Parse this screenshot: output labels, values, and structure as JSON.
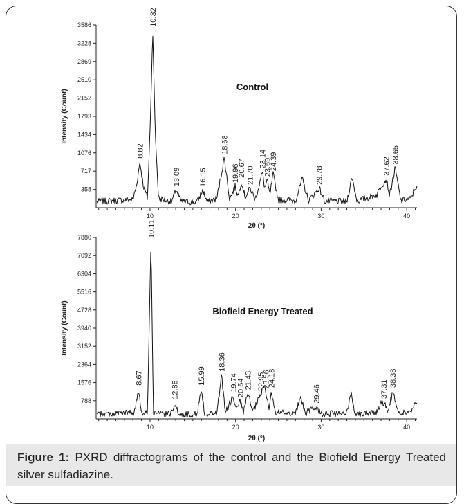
{
  "caption": {
    "label": "Figure 1:",
    "text": " PXRD diffractograms of the control and the Biofield Energy Treated silver sulfadiazine."
  },
  "chart_data": [
    {
      "type": "line",
      "title": "Control",
      "xlabel": "2θ (°)",
      "ylabel": "Intensity (Count)",
      "xlim": [
        3.7,
        41.2
      ],
      "ylim": [
        0,
        3586
      ],
      "x_ticks": [
        10,
        20,
        30,
        40
      ],
      "y_ticks": [
        358,
        717,
        1076,
        1434,
        1793,
        2152,
        2510,
        2869,
        3228,
        3586
      ],
      "series": [
        {
          "x": [
            4,
            8,
            8.4,
            8.82,
            9.2,
            9.7,
            10.0,
            10.32,
            10.6,
            11.0,
            12.5,
            13.09,
            13.6,
            15.5,
            16.15,
            16.7,
            17.8,
            18.68,
            19.3,
            19.96,
            20.3,
            20.67,
            21.1,
            21.7,
            22.3,
            23.14,
            23.4,
            23.69,
            24.0,
            24.39,
            25.0,
            27.0,
            27.8,
            28.5,
            29.78,
            30.4,
            33.0,
            33.6,
            34.2,
            36.5,
            37.0,
            37.62,
            38.0,
            38.65,
            39.3,
            40.5,
            41.0
          ],
          "y": [
            120,
            160,
            420,
            900,
            450,
            180,
            1500,
            3480,
            1500,
            180,
            120,
            350,
            120,
            110,
            340,
            110,
            180,
            980,
            170,
            420,
            230,
            520,
            210,
            380,
            160,
            700,
            380,
            540,
            250,
            650,
            160,
            140,
            560,
            140,
            380,
            130,
            120,
            600,
            130,
            250,
            430,
            560,
            240,
            780,
            140,
            180,
            400
          ]
        }
      ],
      "peak_labels": [
        {
          "x": 8.82,
          "y": 900,
          "text": "8.82"
        },
        {
          "x": 10.32,
          "y": 3480,
          "text": "10.32"
        },
        {
          "x": 13.09,
          "y": 350,
          "text": "13.09"
        },
        {
          "x": 16.15,
          "y": 340,
          "text": "16.15"
        },
        {
          "x": 18.68,
          "y": 980,
          "text": "18.68"
        },
        {
          "x": 19.96,
          "y": 420,
          "text": "19.96"
        },
        {
          "x": 20.67,
          "y": 520,
          "text": "20.67"
        },
        {
          "x": 21.7,
          "y": 380,
          "text": "21.70"
        },
        {
          "x": 23.14,
          "y": 700,
          "text": "23.14"
        },
        {
          "x": 23.69,
          "y": 540,
          "text": "23.69"
        },
        {
          "x": 24.39,
          "y": 650,
          "text": "24.39"
        },
        {
          "x": 29.78,
          "y": 380,
          "text": "29.78"
        },
        {
          "x": 37.62,
          "y": 560,
          "text": "37.62"
        },
        {
          "x": 38.65,
          "y": 780,
          "text": "38.65"
        }
      ]
    },
    {
      "type": "line",
      "title": "Biofield Energy Treated",
      "xlabel": "2θ (°)",
      "ylabel": "Intensity (Count)",
      "xlim": [
        3.7,
        41.2
      ],
      "ylim": [
        0,
        7880
      ],
      "x_ticks": [
        10,
        20,
        30,
        40
      ],
      "y_ticks": [
        788,
        1576,
        2364,
        3152,
        3940,
        4728,
        5516,
        6304,
        7092,
        7880
      ],
      "series": [
        {
          "x": [
            4,
            8.2,
            8.67,
            9.0,
            9.7,
            10.11,
            10.4,
            11.0,
            12.4,
            12.88,
            13.3,
            15.5,
            15.99,
            16.4,
            17.8,
            18.36,
            18.8,
            19.74,
            20.1,
            20.54,
            20.9,
            21.43,
            22.0,
            22.95,
            23.3,
            23.56,
            23.9,
            24.18,
            24.6,
            27.0,
            27.6,
            28.2,
            29.46,
            30.0,
            33.0,
            33.5,
            34.0,
            36.5,
            37.0,
            37.31,
            37.8,
            38.38,
            39.0,
            40.5,
            41.0
          ],
          "y": [
            200,
            280,
            1300,
            280,
            300,
            7700,
            300,
            220,
            200,
            700,
            200,
            200,
            1300,
            200,
            260,
            1900,
            260,
            1000,
            380,
            780,
            300,
            1100,
            300,
            1050,
            1400,
            1150,
            400,
            1200,
            280,
            260,
            900,
            250,
            520,
            220,
            220,
            1150,
            220,
            300,
            700,
            720,
            300,
            1200,
            250,
            300,
            650
          ]
        }
      ],
      "peak_labels": [
        {
          "x": 8.67,
          "y": 1300,
          "text": "8.67"
        },
        {
          "x": 10.11,
          "y": 7700,
          "text": "10.11"
        },
        {
          "x": 12.88,
          "y": 700,
          "text": "12.88"
        },
        {
          "x": 15.99,
          "y": 1300,
          "text": "15.99"
        },
        {
          "x": 18.36,
          "y": 1900,
          "text": "18.36"
        },
        {
          "x": 19.74,
          "y": 1000,
          "text": "19.74"
        },
        {
          "x": 20.54,
          "y": 780,
          "text": "20.54"
        },
        {
          "x": 21.43,
          "y": 1100,
          "text": "21.43"
        },
        {
          "x": 22.95,
          "y": 1050,
          "text": "22.95"
        },
        {
          "x": 23.56,
          "y": 1150,
          "text": "23.56"
        },
        {
          "x": 24.18,
          "y": 1200,
          "text": "24.18"
        },
        {
          "x": 29.46,
          "y": 520,
          "text": "29.46"
        },
        {
          "x": 37.31,
          "y": 720,
          "text": "37.31"
        },
        {
          "x": 38.38,
          "y": 1200,
          "text": "38.38"
        }
      ]
    }
  ]
}
